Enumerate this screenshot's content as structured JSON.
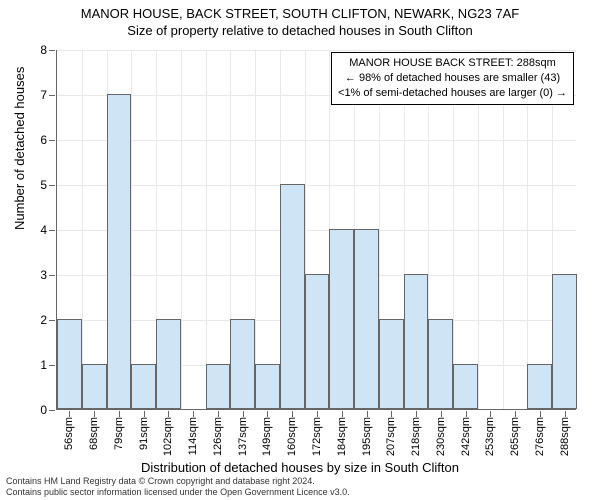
{
  "title": "MANOR HOUSE, BACK STREET, SOUTH CLIFTON, NEWARK, NG23 7AF",
  "subtitle": "Size of property relative to detached houses in South Clifton",
  "ylabel": "Number of detached houses",
  "xlabel": "Distribution of detached houses by size in South Clifton",
  "chart": {
    "type": "bar",
    "ylim": [
      0,
      8
    ],
    "ytick_step": 1,
    "xtick_labels": [
      "56sqm",
      "68sqm",
      "79sqm",
      "91sqm",
      "102sqm",
      "114sqm",
      "126sqm",
      "137sqm",
      "149sqm",
      "160sqm",
      "172sqm",
      "184sqm",
      "195sqm",
      "207sqm",
      "218sqm",
      "230sqm",
      "242sqm",
      "253sqm",
      "265sqm",
      "276sqm",
      "288sqm"
    ],
    "values": [
      2,
      1,
      7,
      1,
      2,
      0,
      1,
      2,
      1,
      5,
      3,
      4,
      4,
      2,
      3,
      2,
      1,
      0,
      0,
      1,
      3
    ],
    "bar_color": "#cfe4f4",
    "bar_border_color": "#666666",
    "background_color": "#ffffff",
    "grid_color": "#e8e8e8",
    "axis_color": "#666666",
    "bar_width_ratio": 1.0,
    "title_fontsize": 13,
    "label_fontsize": 13,
    "tick_fontsize": 11
  },
  "annotation": {
    "line1": "MANOR HOUSE BACK STREET: 288sqm",
    "line2": "← 98% of detached houses are smaller (43)",
    "line3": "<1% of semi-detached houses are larger (0) →",
    "border_color": "#000000",
    "background_color": "#ffffff",
    "fontsize": 11
  },
  "footer": {
    "line1": "Contains HM Land Registry data © Crown copyright and database right 2024.",
    "line2": "Contains public sector information licensed under the Open Government Licence v3.0."
  }
}
